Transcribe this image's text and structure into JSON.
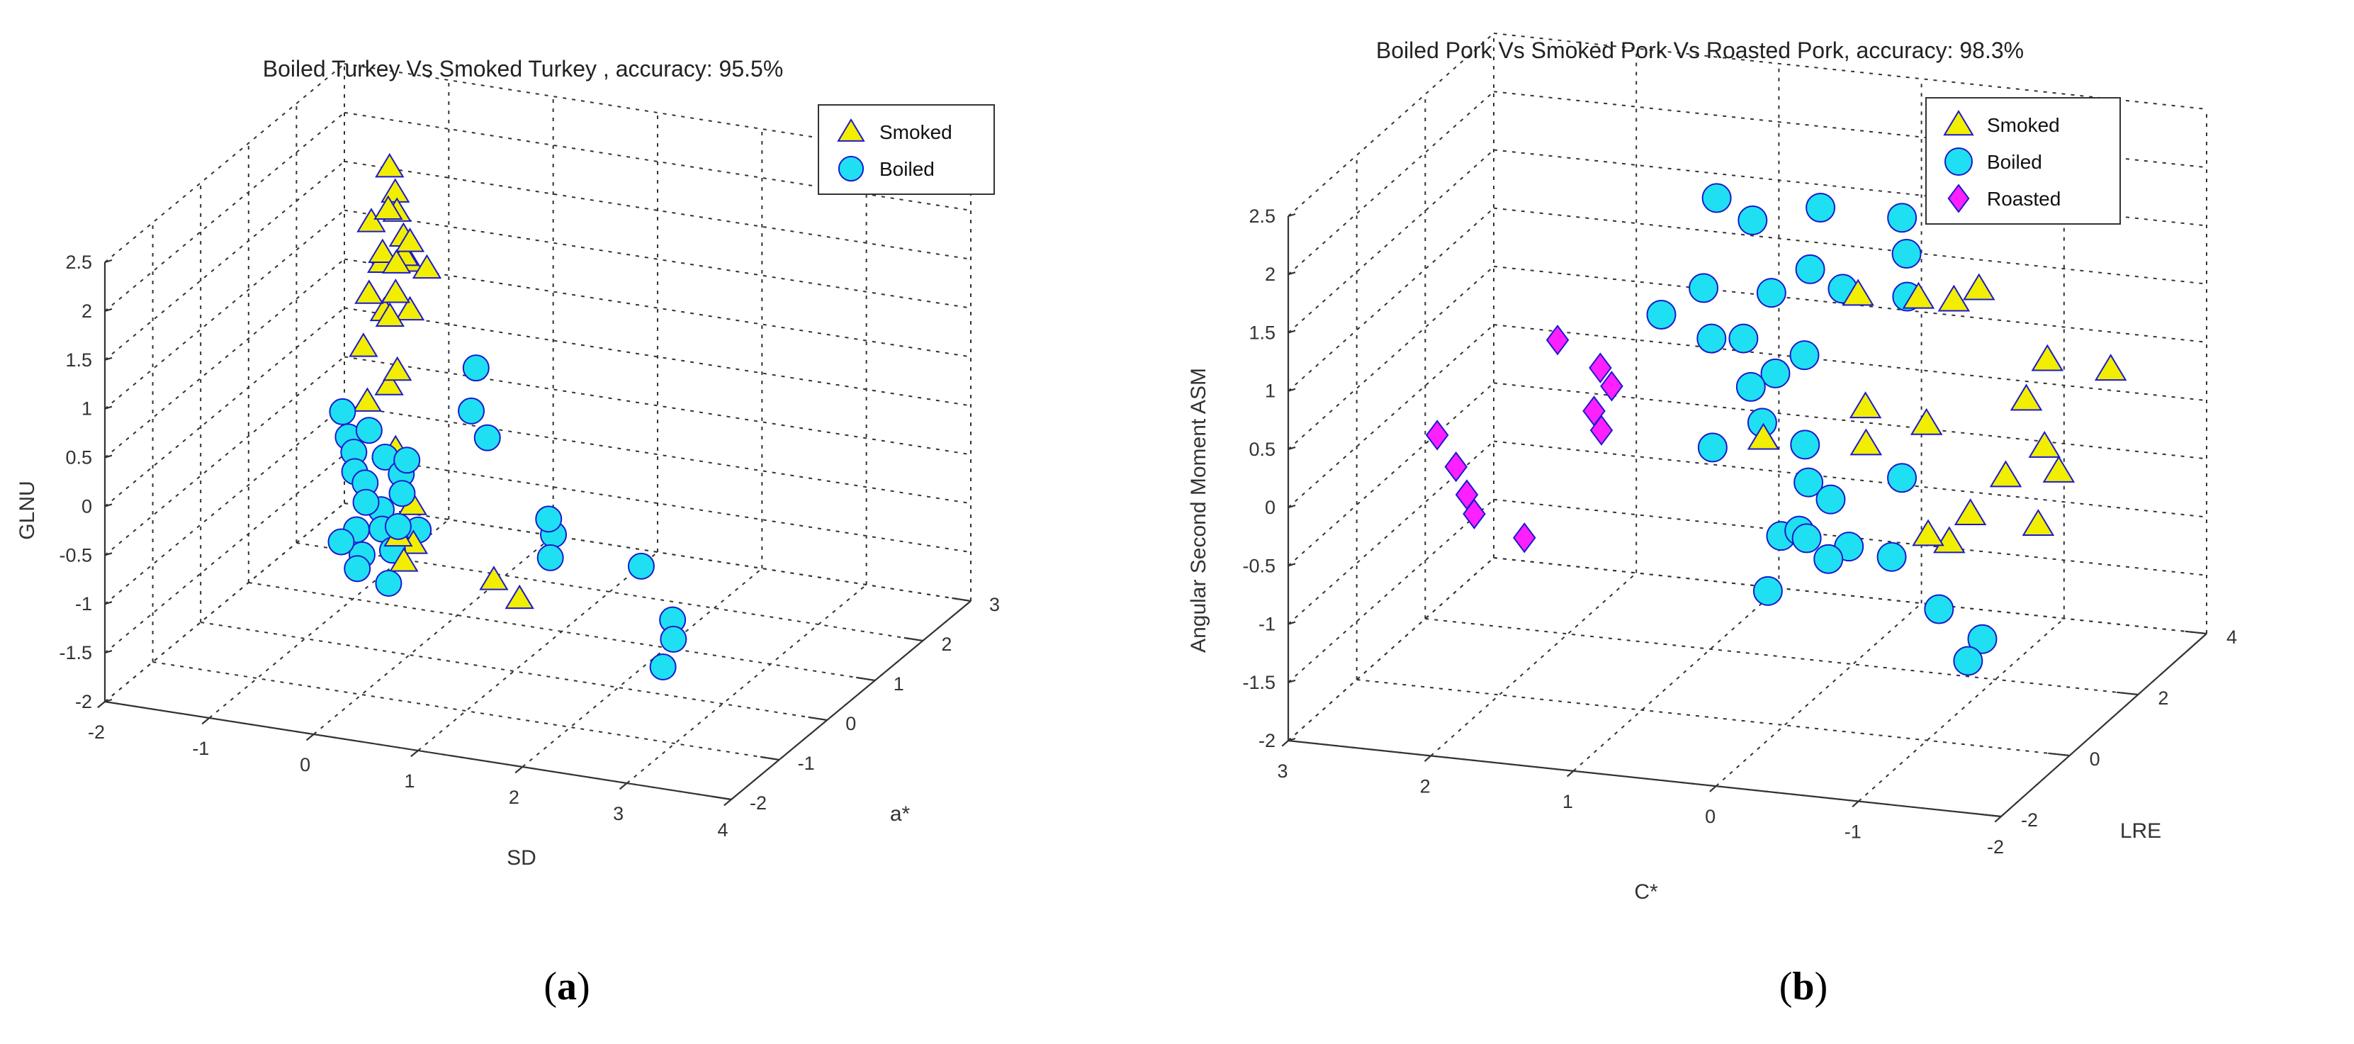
{
  "captions": {
    "a_open": "(",
    "a_letter": "a",
    "a_close": ")",
    "b_open": "(",
    "b_letter": "b",
    "b_close": ")"
  },
  "colors": {
    "smoked": "#f2ee00",
    "boiled": "#1fe0f2",
    "roasted": "#ff20ff",
    "marker_edge": "#1a1acc"
  },
  "chart_data": [
    {
      "type": "scatter",
      "id": "a",
      "title": "Boiled Turkey Vs Smoked Turkey , accuracy: 95.5%",
      "xlabel": "SD",
      "ylabel": "a*",
      "zlabel": "GLNU",
      "x_ticks": [
        "-2",
        "-1",
        "0",
        "1",
        "2",
        "3",
        "4"
      ],
      "y_ticks": [
        "-2",
        "-1",
        "0",
        "1",
        "2",
        "3"
      ],
      "z_ticks": [
        "-2",
        "-1.5",
        "-1",
        "-0.5",
        "0",
        "0.5",
        "1",
        "1.5",
        "2",
        "2.5"
      ],
      "xlim": [
        -2,
        4
      ],
      "ylim": [
        -2,
        3
      ],
      "zlim": [
        -2,
        2.5
      ],
      "legend_position": "top-right",
      "series": [
        {
          "name": "Smoked",
          "marker": "triangle",
          "points": [
            [
              -1.2,
              2.2,
              1.9
            ],
            [
              -1.1,
              2.1,
              1.7
            ],
            [
              -1.1,
              1.6,
              1.6
            ],
            [
              -0.9,
              1.7,
              1.7
            ],
            [
              -0.8,
              1.3,
              1.9
            ],
            [
              -0.7,
              1.4,
              1.6
            ],
            [
              -0.6,
              1.3,
              1.4
            ],
            [
              -0.5,
              1.1,
              1.7
            ],
            [
              -0.8,
              0.9,
              1.2
            ],
            [
              -1.0,
              1.6,
              1.2
            ],
            [
              -0.9,
              1.4,
              1.4
            ],
            [
              -0.6,
              1.2,
              1.5
            ],
            [
              -0.5,
              0.8,
              1.3
            ],
            [
              -0.6,
              0.9,
              1.0
            ],
            [
              -0.7,
              1.0,
              1.0
            ],
            [
              -0.5,
              1.1,
              1.0
            ],
            [
              -0.4,
              0.6,
              1.7
            ],
            [
              -0.2,
              0.8,
              1.6
            ],
            [
              -0.9,
              1.0,
              0.6
            ],
            [
              -0.7,
              1.1,
              0.2
            ],
            [
              -0.3,
              0.4,
              0.7
            ],
            [
              -1.0,
              1.3,
              -0.1
            ],
            [
              -0.5,
              0.8,
              -0.3
            ],
            [
              -0.2,
              0.2,
              -0.9
            ],
            [
              -0.2,
              0.5,
              -0.7
            ],
            [
              -0.1,
              0.3,
              -1.0
            ],
            [
              -0.1,
              0.1,
              -1.1
            ],
            [
              0.9,
              -0.2,
              -1.0
            ],
            [
              1.1,
              -0.1,
              -1.2
            ]
          ]
        },
        {
          "name": "Boiled",
          "marker": "circle",
          "points": [
            [
              -1.1,
              1.0,
              -0.1
            ],
            [
              -1.0,
              0.9,
              -0.3
            ],
            [
              -0.9,
              0.8,
              -0.4
            ],
            [
              -0.8,
              0.9,
              -0.2
            ],
            [
              -0.8,
              0.6,
              -0.5
            ],
            [
              -0.7,
              0.6,
              -0.6
            ],
            [
              -0.6,
              0.4,
              -0.7
            ],
            [
              -0.5,
              0.5,
              -0.8
            ],
            [
              -0.4,
              0.3,
              -0.9
            ],
            [
              -0.3,
              0.3,
              -1.1
            ],
            [
              -0.6,
              0.2,
              -0.9
            ],
            [
              -0.5,
              0.1,
              -1.1
            ],
            [
              -0.4,
              0.7,
              -0.5
            ],
            [
              -0.6,
              0.8,
              -0.4
            ],
            [
              -0.3,
              0.5,
              -0.6
            ],
            [
              -0.2,
              0.2,
              -0.8
            ],
            [
              -0.1,
              0.4,
              -0.9
            ],
            [
              -0.7,
              0.1,
              -1.0
            ],
            [
              -0.5,
              0.0,
              -1.2
            ],
            [
              -0.2,
              0.0,
              -1.3
            ],
            [
              -0.3,
              0.6,
              -0.3
            ],
            [
              0.5,
              0.3,
              0.9
            ],
            [
              0.5,
              0.2,
              0.5
            ],
            [
              0.7,
              0.1,
              0.3
            ],
            [
              1.7,
              -0.8,
              0.0
            ],
            [
              1.7,
              -0.7,
              -0.2
            ],
            [
              1.9,
              -1.2,
              -0.2
            ],
            [
              3.0,
              -1.7,
              0.1
            ],
            [
              3.3,
              -1.7,
              -0.4
            ],
            [
              3.4,
              -1.9,
              -0.5
            ],
            [
              3.3,
              -1.9,
              -0.8
            ]
          ]
        }
      ]
    },
    {
      "type": "scatter",
      "id": "b",
      "title": "Boiled Pork Vs Smoked Pork Vs Roasted Pork, accuracy: 98.3%",
      "xlabel": "C*",
      "ylabel": "LRE",
      "zlabel": "Angular Second Moment ASM",
      "x_ticks": [
        "3",
        "2",
        "1",
        "0",
        "-1",
        "-2"
      ],
      "y_ticks": [
        "-2",
        "0",
        "2",
        "4"
      ],
      "z_ticks": [
        "-2",
        "-1.5",
        "-1",
        "-0.5",
        "0",
        "0.5",
        "1",
        "1.5",
        "2",
        "2.5"
      ],
      "xlim": [
        3,
        -2
      ],
      "ylim": [
        4,
        -2
      ],
      "zlim": [
        -2,
        2.5
      ],
      "legend_position": "top-right",
      "series": [
        {
          "name": "Smoked",
          "marker": "triangle",
          "points": [
            [
              -0.3,
              1.1,
              1.5
            ],
            [
              -0.7,
              1.0,
              1.5
            ],
            [
              -0.9,
              0.8,
              1.45
            ],
            [
              -1.1,
              0.9,
              1.6
            ],
            [
              -1.7,
              1.4,
              1.2
            ],
            [
              -2.0,
              0.8,
              1.0
            ],
            [
              -1.6,
              1.6,
              0.9
            ],
            [
              -1.8,
              1.9,
              0.6
            ],
            [
              -1.6,
              2.2,
              0.4
            ],
            [
              -1.9,
              2.5,
              0.1
            ],
            [
              -1.4,
              2.4,
              0.1
            ],
            [
              -1.2,
              2.8,
              0.0
            ],
            [
              -0.9,
              1.6,
              0.6
            ],
            [
              -0.4,
              1.3,
              0.6
            ],
            [
              -0.5,
              1.7,
              0.4
            ],
            [
              0.1,
              2.2,
              0.5
            ],
            [
              -1.9,
              1.9,
              0.4
            ],
            [
              -1.3,
              2.6,
              -0.1
            ]
          ]
        },
        {
          "name": "Boiled",
          "marker": "circle",
          "points": [
            [
              1.1,
              -0.6,
              1.7
            ],
            [
              0.8,
              -0.4,
              1.6
            ],
            [
              0.3,
              -0.3,
              1.8
            ],
            [
              -0.2,
              -0.6,
              1.7
            ],
            [
              -0.4,
              0.1,
              1.6
            ],
            [
              0.3,
              0.0,
              1.35
            ],
            [
              0.0,
              0.3,
              1.3
            ],
            [
              -0.5,
              0.5,
              1.35
            ],
            [
              1.2,
              0.6,
              1.0
            ],
            [
              0.5,
              0.3,
              1.2
            ],
            [
              0.8,
              0.8,
              0.9
            ],
            [
              0.6,
              0.7,
              0.9
            ],
            [
              1.0,
              0.2,
              1.15
            ],
            [
              0.1,
              1.0,
              0.9
            ],
            [
              0.5,
              0.9,
              0.55
            ],
            [
              0.4,
              0.6,
              0.6
            ],
            [
              0.3,
              1.4,
              0.4
            ],
            [
              0.0,
              1.4,
              0.25
            ],
            [
              0.6,
              1.6,
              0.2
            ],
            [
              0.0,
              1.3,
              -0.1
            ],
            [
              -0.3,
              1.9,
              -0.05
            ],
            [
              0.0,
              2.1,
              -0.35
            ],
            [
              -0.5,
              2.2,
              -0.35
            ],
            [
              -0.8,
              2.2,
              -0.4
            ],
            [
              -0.5,
              2.8,
              -0.3
            ],
            [
              -0.8,
              1.9,
              0.2
            ],
            [
              -0.1,
              2.9,
              -0.6
            ],
            [
              -1.3,
              2.9,
              -0.6
            ],
            [
              -1.7,
              3.3,
              -0.7
            ],
            [
              -1.6,
              3.3,
              -0.9
            ],
            [
              -0.2,
              2.4,
              -0.2
            ],
            [
              -0.3,
              2.6,
              -0.2
            ]
          ]
        },
        {
          "name": "Roasted",
          "marker": "diamond",
          "points": [
            [
              2.7,
              0.9,
              -0.15
            ],
            [
              2.4,
              1.6,
              -0.2
            ],
            [
              2.3,
              1.7,
              -0.4
            ],
            [
              2.2,
              1.9,
              -0.5
            ],
            [
              1.8,
              2.1,
              -0.6
            ],
            [
              2.0,
              0.3,
              0.6
            ],
            [
              1.7,
              0.3,
              0.4
            ],
            [
              1.5,
              0.8,
              0.4
            ],
            [
              1.6,
              0.9,
              0.2
            ],
            [
              1.5,
              1.1,
              0.1
            ]
          ]
        }
      ]
    }
  ]
}
